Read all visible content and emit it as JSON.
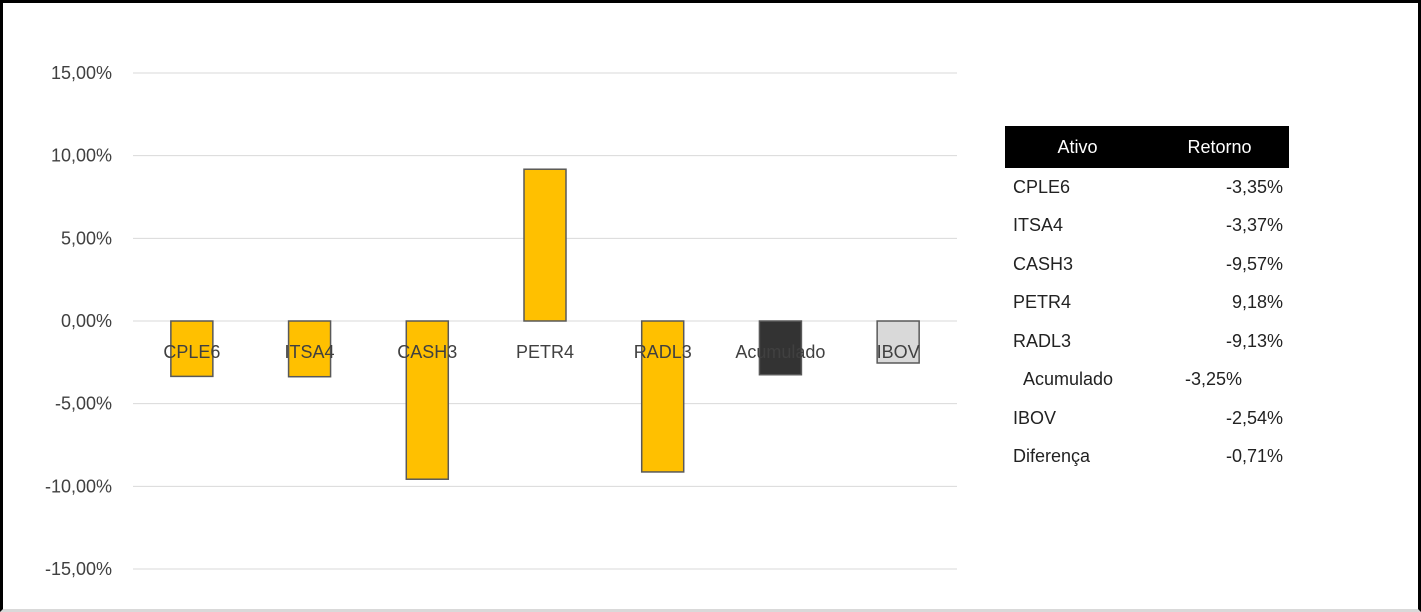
{
  "chart_data": {
    "type": "bar",
    "title": "",
    "xlabel": "",
    "ylabel": "",
    "categories": [
      "CPLE6",
      "ITSA4",
      "CASH3",
      "PETR4",
      "RADL3",
      "Acumulado",
      "IBOV"
    ],
    "values": [
      -3.35,
      -3.37,
      -9.57,
      9.18,
      -9.13,
      -3.25,
      -2.54
    ],
    "bar_colors": [
      "#FFC000",
      "#FFC000",
      "#FFC000",
      "#FFC000",
      "#FFC000",
      "#333333",
      "#D9D9D9"
    ],
    "ylim": [
      -15,
      15
    ],
    "yticks": [
      15,
      10,
      5,
      0,
      -5,
      -10,
      -15
    ],
    "ytick_labels": [
      "15,00%",
      "10,00%",
      "5,00%",
      "0,00%",
      "-5,00%",
      "-10,00%",
      "-15,00%"
    ],
    "grid": true,
    "legend": "none"
  },
  "table": {
    "header": {
      "col1": "Ativo",
      "col2": "Retorno"
    },
    "rows": [
      {
        "name": "CPLE6",
        "value": "-3,35%"
      },
      {
        "name": "ITSA4",
        "value": "-3,37%"
      },
      {
        "name": "CASH3",
        "value": "-9,57%"
      },
      {
        "name": "PETR4",
        "value": "9,18%"
      },
      {
        "name": "RADL3",
        "value": "-9,13%"
      },
      {
        "name": "Acumulado",
        "value": "-3,25%"
      },
      {
        "name": "IBOV",
        "value": "-2,54%"
      },
      {
        "name": "Diferença",
        "value": "-0,71%"
      }
    ]
  },
  "colors": {
    "accent": "#FFC000",
    "accumulated": "#333333",
    "index": "#D9D9D9",
    "grid": "#D9D9D9"
  }
}
